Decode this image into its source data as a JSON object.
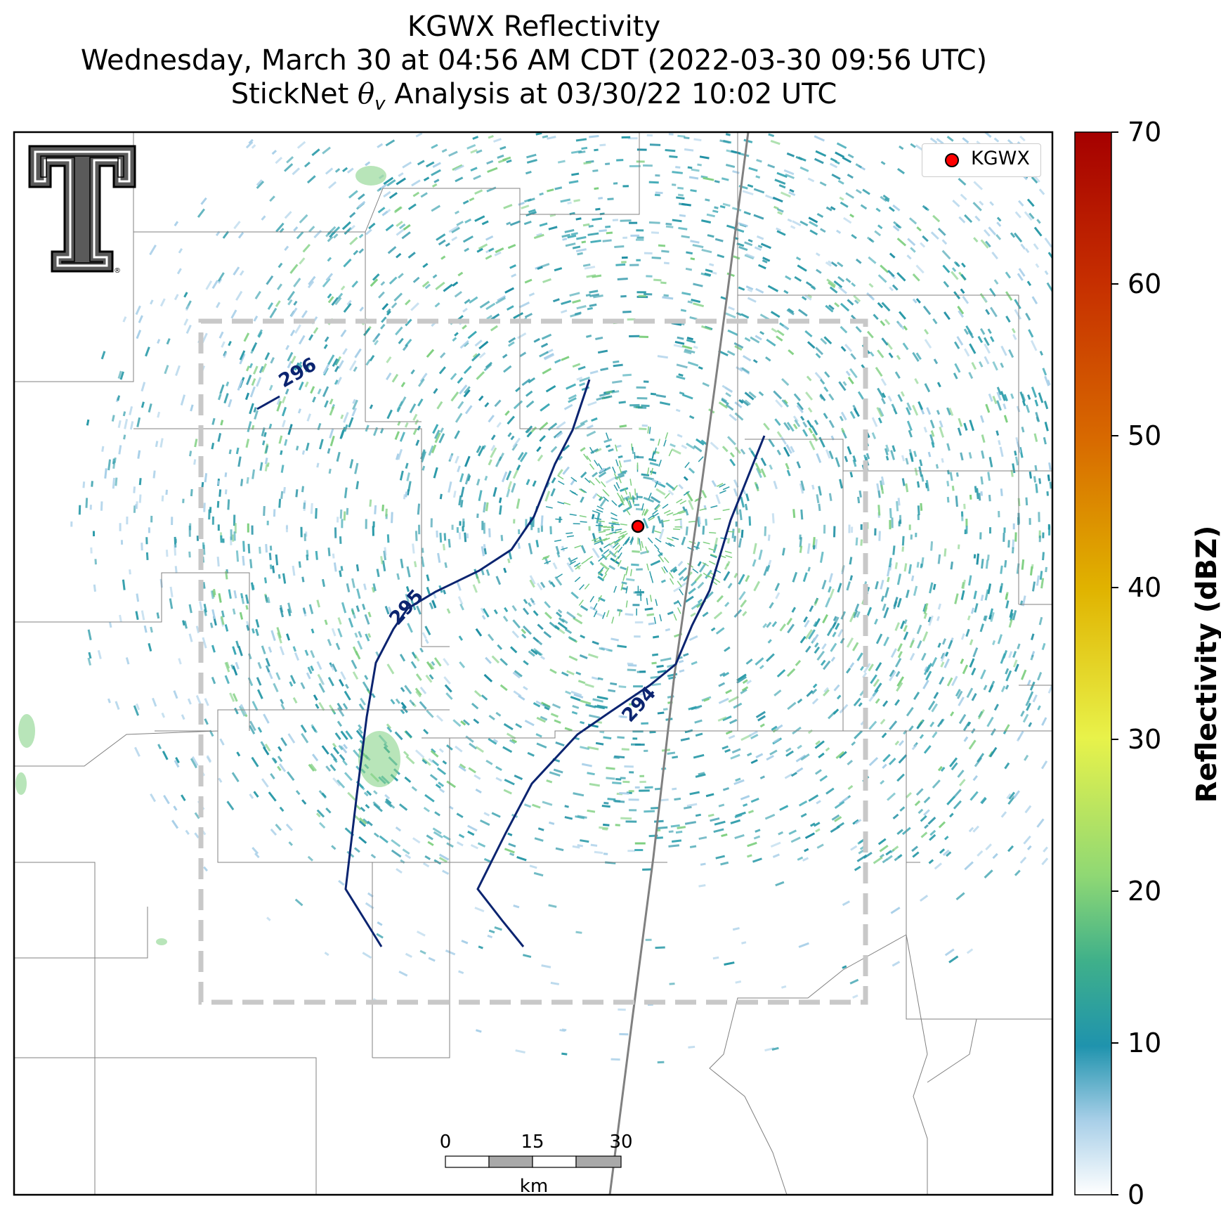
{
  "title": {
    "line1": "KGWX Reflectivity",
    "line2": "Wednesday, March 30 at 04:56 AM CDT (2022-03-30 09:56 UTC)",
    "line3_prefix": "StickNet ",
    "line3_symbol": "θ",
    "line3_subscript": "v",
    "line3_suffix": " Analysis at 03/30/22 10:02 UTC"
  },
  "legend": {
    "label": "KGWX",
    "marker_color": "#ff0000"
  },
  "colorbar": {
    "label": "Reflectivity (dBZ)",
    "ticks": [
      "0",
      "10",
      "20",
      "30",
      "40",
      "50",
      "60",
      "70"
    ],
    "min": 0,
    "max": 70,
    "stops": [
      "#ffffff",
      "#a8cfe8",
      "#1f93ad",
      "#3fb08a",
      "#8fd874",
      "#e8f24a",
      "#e0b300",
      "#d86a00",
      "#c62e00",
      "#a50000"
    ]
  },
  "scalebar": {
    "ticks": [
      "0",
      "15",
      "30"
    ],
    "unit": "km"
  },
  "contours": [
    {
      "label": "296"
    },
    {
      "label": "295"
    },
    {
      "label": "294"
    }
  ],
  "colors": {
    "contour": "#0b2470",
    "analysis_box": "#c8c8c8",
    "echo_main": "#2a9aa8",
    "echo_light": "#a8cfe8",
    "echo_green": "#7ecf80"
  },
  "logo": {
    "name": "Texas Tech Double T",
    "registered_mark": "®"
  }
}
